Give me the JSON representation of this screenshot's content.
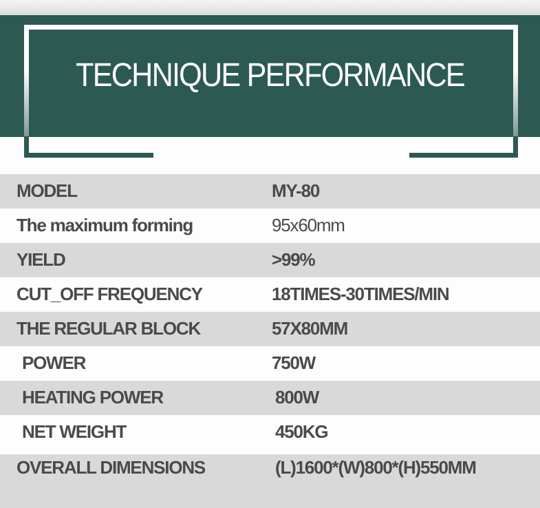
{
  "header": {
    "title": "TECHNIQUE PERFORMANCE",
    "accent_color": "#2c5a52"
  },
  "specs": [
    {
      "label": "MODEL",
      "value": "MY-80"
    },
    {
      "label": "The maximum forming",
      "value": "95x60mm"
    },
    {
      "label": "YIELD",
      "value": ">99%"
    },
    {
      "label": "CUT_OFF FREQUENCY",
      "value": "18TIMES-30TIMES/MIN"
    },
    {
      "label": "THE REGULAR BLOCK",
      "value": "57X80MM"
    },
    {
      "label": "POWER",
      "value": "750W"
    },
    {
      "label": "HEATING POWER",
      "value": "800W"
    },
    {
      "label": "NET WEIGHT",
      "value": "450KG"
    },
    {
      "label": "OVERALL DIMENSIONS",
      "value": "(L)1600*(W)800*(H)550MM"
    }
  ]
}
